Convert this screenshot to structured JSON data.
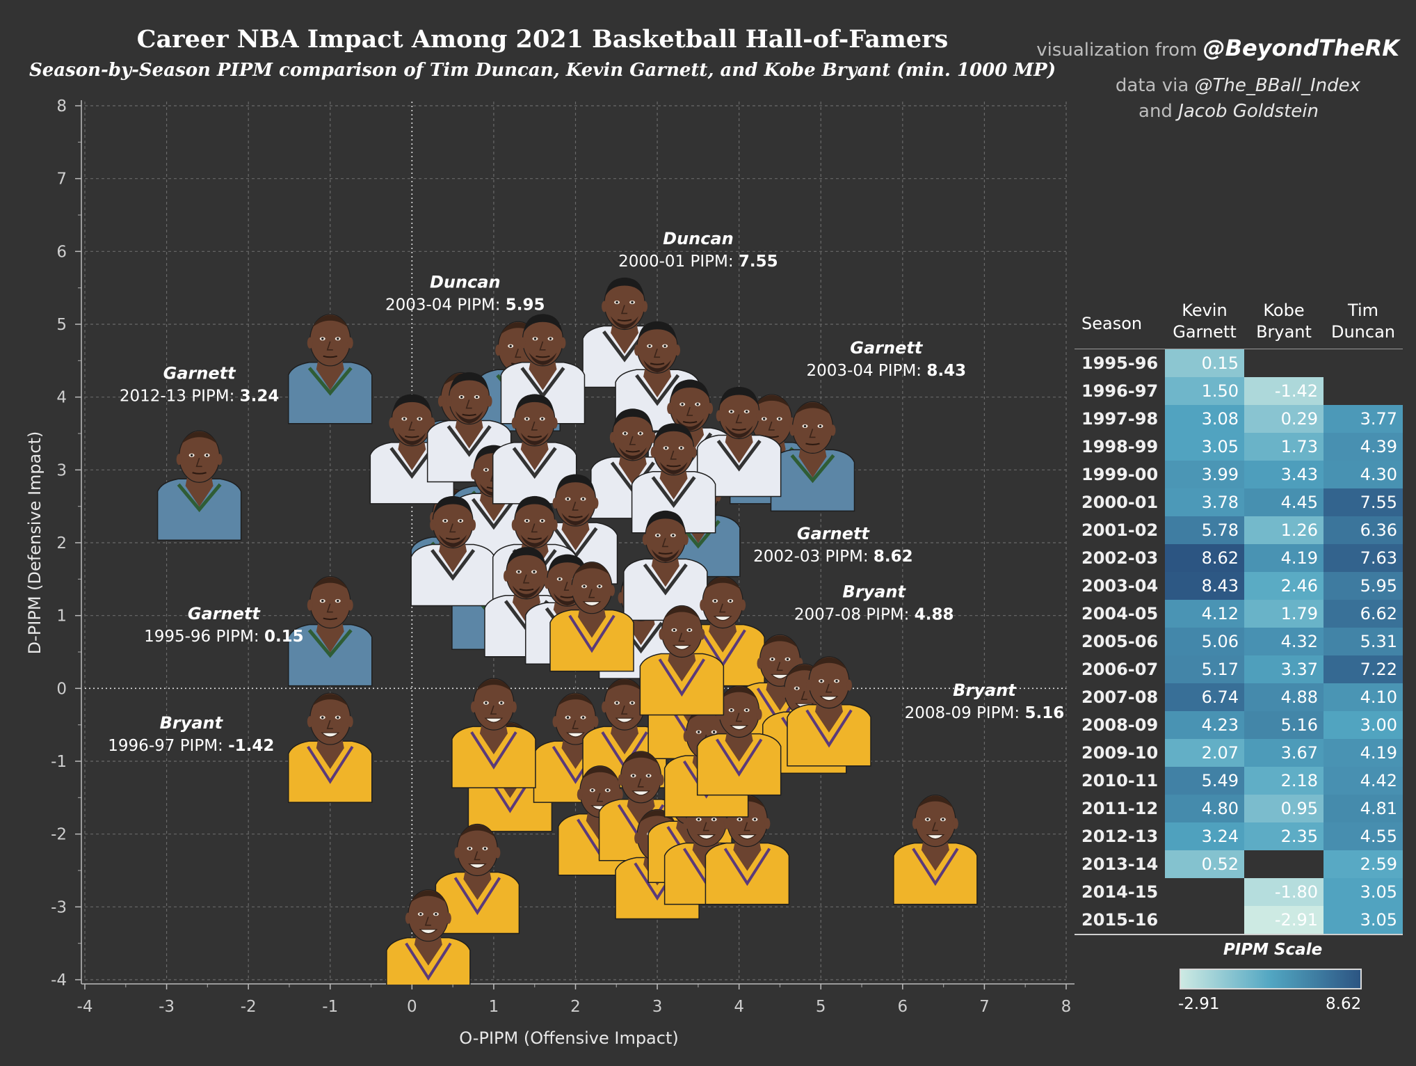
{
  "title": "Career NBA Impact Among 2021 Basketball Hall-of-Famers",
  "subtitle": "Season-by-Season PIPM comparison of Tim Duncan, Kevin Garnett, and Kobe Bryant (min. 1000 MP)",
  "credits": {
    "visualization_prefix": "visualization from ",
    "visualization_handle": "@BeyondTheRK",
    "data_prefix": "data via ",
    "data_handle": "@The_BBall_Index",
    "and_text": "and ",
    "and_name": "Jacob Goldstein"
  },
  "colors": {
    "background": "#333333",
    "grid": "#6a6a6a",
    "garnett_jersey": "#5c86a6",
    "duncan_jersey": "#e8ebf2",
    "bryant_jersey": "#f0b429",
    "skin": "#6b4330",
    "scale_low": "#cdeae3",
    "scale_high": "#2c5582"
  },
  "chart_data": {
    "type": "scatter",
    "title": "Career NBA Impact Among 2021 Basketball Hall-of-Famers",
    "subtitle": "Season-by-Season PIPM comparison of Tim Duncan, Kevin Garnett, and Kobe Bryant (min. 1000 MP)",
    "xlabel": "O-PIPM (Offensive Impact)",
    "ylabel": "D-PIPM (Defensive Impact)",
    "xlim": [
      -4,
      8
    ],
    "ylim": [
      -4,
      8
    ],
    "xticks": [
      "-4",
      "-3",
      "-2",
      "-1",
      "0",
      "1",
      "2",
      "3",
      "4",
      "5",
      "6",
      "7",
      "8"
    ],
    "yticks": [
      "8",
      "7",
      "6",
      "5",
      "4",
      "3",
      "2",
      "1",
      "0",
      "-1",
      "-2",
      "-3",
      "-4"
    ],
    "grid": true,
    "marker": "player headshot",
    "series": [
      {
        "name": "Garnett",
        "player": "garnett",
        "points": [
          {
            "x": -1.0,
            "y": 4.4
          },
          {
            "x": -2.6,
            "y": 2.8
          },
          {
            "x": 4.4,
            "y": 3.3
          },
          {
            "x": 4.9,
            "y": 3.2
          },
          {
            "x": 0.5,
            "y": 2.0
          },
          {
            "x": 3.5,
            "y": 2.3
          },
          {
            "x": -1.0,
            "y": 0.8
          },
          {
            "x": 1.0,
            "y": 1.3
          },
          {
            "x": 1.0,
            "y": 2.7
          },
          {
            "x": 0.6,
            "y": 3.6
          },
          {
            "x": 1.3,
            "y": 4.3
          }
        ]
      },
      {
        "name": "Duncan",
        "player": "duncan",
        "points": [
          {
            "x": 2.6,
            "y": 4.9
          },
          {
            "x": 1.6,
            "y": 4.4
          },
          {
            "x": 3.0,
            "y": 4.3
          },
          {
            "x": 3.4,
            "y": 3.5
          },
          {
            "x": 0.0,
            "y": 3.3
          },
          {
            "x": 4.0,
            "y": 3.4
          },
          {
            "x": 2.7,
            "y": 3.1
          },
          {
            "x": 0.7,
            "y": 3.6
          },
          {
            "x": 1.0,
            "y": 2.6
          },
          {
            "x": 1.5,
            "y": 3.3
          },
          {
            "x": 2.0,
            "y": 2.2
          },
          {
            "x": 3.2,
            "y": 2.9
          },
          {
            "x": 0.5,
            "y": 1.9
          },
          {
            "x": 1.5,
            "y": 1.9
          },
          {
            "x": 2.8,
            "y": 0.9
          },
          {
            "x": 1.4,
            "y": 1.2
          },
          {
            "x": 1.9,
            "y": 1.1
          },
          {
            "x": 3.1,
            "y": 1.7
          }
        ]
      },
      {
        "name": "Bryant",
        "player": "bryant",
        "points": [
          {
            "x": -1.0,
            "y": -0.8
          },
          {
            "x": 1.2,
            "y": -1.2
          },
          {
            "x": 2.0,
            "y": -0.8
          },
          {
            "x": 2.6,
            "y": -0.6
          },
          {
            "x": 3.4,
            "y": -0.2
          },
          {
            "x": 3.8,
            "y": 0.8
          },
          {
            "x": 4.5,
            "y": 0.0
          },
          {
            "x": 4.8,
            "y": -0.4
          },
          {
            "x": 5.1,
            "y": -0.3
          },
          {
            "x": 2.2,
            "y": 1.0
          },
          {
            "x": 2.3,
            "y": -1.8
          },
          {
            "x": 2.8,
            "y": -1.6
          },
          {
            "x": 3.0,
            "y": -2.4
          },
          {
            "x": 3.4,
            "y": -1.9
          },
          {
            "x": 3.6,
            "y": -2.2
          },
          {
            "x": 4.1,
            "y": -2.2
          },
          {
            "x": 3.6,
            "y": -1.0
          },
          {
            "x": 4.0,
            "y": -0.7
          },
          {
            "x": 0.8,
            "y": -2.6
          },
          {
            "x": 0.2,
            "y": -3.5
          },
          {
            "x": 6.4,
            "y": -2.2
          },
          {
            "x": 3.3,
            "y": 0.4
          },
          {
            "x": 1.0,
            "y": -0.6
          }
        ]
      }
    ],
    "annotations": [
      {
        "name": "Duncan",
        "season": "2000-01 PIPM:",
        "value": "7.55",
        "x": 3.5,
        "y": 6.1
      },
      {
        "name": "Duncan",
        "season": "2003-04 PIPM:",
        "value": "5.95",
        "x": 0.65,
        "y": 5.5
      },
      {
        "name": "Garnett",
        "season": "2003-04 PIPM:",
        "value": "8.43",
        "x": 5.8,
        "y": 4.6
      },
      {
        "name": "Garnett",
        "season": "2012-13 PIPM:",
        "value": "3.24",
        "x": -2.6,
        "y": 4.25
      },
      {
        "name": "Garnett",
        "season": "2002-03 PIPM:",
        "value": "8.62",
        "x": 5.15,
        "y": 2.05
      },
      {
        "name": "Bryant",
        "season": "2007-08 PIPM:",
        "value": "4.88",
        "x": 5.65,
        "y": 1.25
      },
      {
        "name": "Garnett",
        "season": "1995-96 PIPM:",
        "value": "0.15",
        "x": -2.3,
        "y": 0.95
      },
      {
        "name": "Bryant",
        "season": "2008-09 PIPM:",
        "value": "5.16",
        "x": 7.0,
        "y": -0.1
      },
      {
        "name": "Bryant",
        "season": "1996-97 PIPM:",
        "value": "-1.42",
        "x": -2.7,
        "y": -0.55
      }
    ]
  },
  "table": {
    "headers": [
      {
        "line1": "Season",
        "line2": ""
      },
      {
        "line1": "Kevin",
        "line2": "Garnett"
      },
      {
        "line1": "Kobe",
        "line2": "Bryant"
      },
      {
        "line1": "Tim",
        "line2": "Duncan"
      }
    ],
    "rows": [
      {
        "season": "1995-96",
        "garnett": "0.15",
        "bryant": "",
        "duncan": ""
      },
      {
        "season": "1996-97",
        "garnett": "1.50",
        "bryant": "-1.42",
        "duncan": ""
      },
      {
        "season": "1997-98",
        "garnett": "3.08",
        "bryant": "0.29",
        "duncan": "3.77"
      },
      {
        "season": "1998-99",
        "garnett": "3.05",
        "bryant": "1.73",
        "duncan": "4.39"
      },
      {
        "season": "1999-00",
        "garnett": "3.99",
        "bryant": "3.43",
        "duncan": "4.30"
      },
      {
        "season": "2000-01",
        "garnett": "3.78",
        "bryant": "4.45",
        "duncan": "7.55"
      },
      {
        "season": "2001-02",
        "garnett": "5.78",
        "bryant": "1.26",
        "duncan": "6.36"
      },
      {
        "season": "2002-03",
        "garnett": "8.62",
        "bryant": "4.19",
        "duncan": "7.63"
      },
      {
        "season": "2003-04",
        "garnett": "8.43",
        "bryant": "2.46",
        "duncan": "5.95"
      },
      {
        "season": "2004-05",
        "garnett": "4.12",
        "bryant": "1.79",
        "duncan": "6.62"
      },
      {
        "season": "2005-06",
        "garnett": "5.06",
        "bryant": "4.32",
        "duncan": "5.31"
      },
      {
        "season": "2006-07",
        "garnett": "5.17",
        "bryant": "3.37",
        "duncan": "7.22"
      },
      {
        "season": "2007-08",
        "garnett": "6.74",
        "bryant": "4.88",
        "duncan": "4.10"
      },
      {
        "season": "2008-09",
        "garnett": "4.23",
        "bryant": "5.16",
        "duncan": "3.00"
      },
      {
        "season": "2009-10",
        "garnett": "2.07",
        "bryant": "3.67",
        "duncan": "4.19"
      },
      {
        "season": "2010-11",
        "garnett": "5.49",
        "bryant": "2.18",
        "duncan": "4.42"
      },
      {
        "season": "2011-12",
        "garnett": "4.80",
        "bryant": "0.95",
        "duncan": "4.81"
      },
      {
        "season": "2012-13",
        "garnett": "3.24",
        "bryant": "2.35",
        "duncan": "4.55"
      },
      {
        "season": "2013-14",
        "garnett": "0.52",
        "bryant": "",
        "duncan": "2.59"
      },
      {
        "season": "2014-15",
        "garnett": "",
        "bryant": "-1.80",
        "duncan": "3.05"
      },
      {
        "season": "2015-16",
        "garnett": "",
        "bryant": "-2.91",
        "duncan": "3.05"
      }
    ]
  },
  "scale": {
    "title": "PIPM Scale",
    "min_label": "-2.91",
    "max_label": "8.62",
    "min": -2.91,
    "max": 8.62
  }
}
